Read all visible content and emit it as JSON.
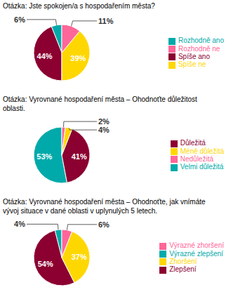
{
  "chart_data": [
    {
      "type": "pie",
      "title": "Otázka: Jste spokojen/a s hospodařením města?",
      "categories": [
        "Rozhodně ano",
        "Spíše ano",
        "Spíše ne",
        "Rozhodně ne"
      ],
      "values": [
        6,
        44,
        39,
        11
      ],
      "value_labels": [
        "6%",
        "44%",
        "39%",
        "11%"
      ],
      "colors": [
        "#00AAAA",
        "#8B0030",
        "#FFD700",
        "#FF6699"
      ],
      "data_labels": true,
      "legend": "right"
    },
    {
      "type": "pie",
      "title": "Otázka: Vyrovnané hospodaření města – Ohodnoťte důležitost\noblasti.",
      "categories": [
        "Velmi důležitá",
        "Důležitá",
        "Méně důležitá",
        "Nedůležitá"
      ],
      "values": [
        53,
        41,
        4,
        2
      ],
      "value_labels": [
        "53%",
        "41%",
        "4%",
        "2%"
      ],
      "colors": [
        "#00AAAA",
        "#8B0030",
        "#FFD700",
        "#FF6699"
      ],
      "data_labels": true,
      "legend": "right"
    },
    {
      "type": "pie",
      "title": "Otázka: Vyrovnané hospodaření města – Ohodnoťte, jak vnímáte\nvývoj situace v dané oblasti v uplynulých 5 letech.",
      "categories": [
        "Výrazné zlepšení",
        "Zlepšení",
        "Zhoršení",
        "Výrazné zhoršení"
      ],
      "values": [
        4,
        54,
        37,
        6
      ],
      "value_labels": [
        "4%",
        "54%",
        "37%",
        "6%"
      ],
      "colors": [
        "#00AAAA",
        "#8B0030",
        "#FFD700",
        "#FF6699"
      ],
      "data_labels": true,
      "legend": "right"
    }
  ]
}
